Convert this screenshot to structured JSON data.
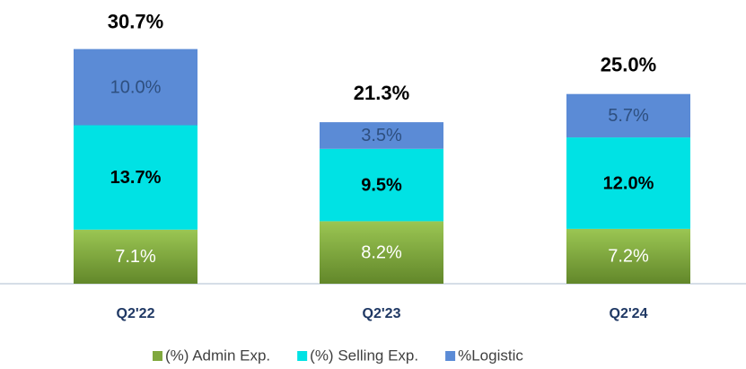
{
  "chart_data": {
    "type": "stacked_bar",
    "categories": [
      "Q2'22",
      "Q2'23",
      "Q2'24"
    ],
    "series": [
      {
        "name": "(%) Admin Exp.",
        "color": "#80a83e",
        "label_color": "#ffffff",
        "values": [
          7.1,
          8.2,
          7.2
        ],
        "value_labels": [
          "7.1%",
          "8.2%",
          "7.2%"
        ]
      },
      {
        "name": "(%) Selling Exp.",
        "color": "#00e2e4",
        "label_color": "#000000",
        "values": [
          13.7,
          9.5,
          12.0
        ],
        "value_labels": [
          "13.7%",
          "9.5%",
          "12.0%"
        ]
      },
      {
        "name": "%Logistic",
        "color": "#5b8bd6",
        "label_color": "#2e4f7f",
        "values": [
          10.0,
          3.5,
          5.7
        ],
        "value_labels": [
          "10.0%",
          "3.5%",
          "5.7%"
        ]
      }
    ],
    "totals": {
      "values": [
        30.7,
        21.3,
        25.0
      ],
      "value_labels": [
        "30.7%",
        "21.3%",
        "25.0%"
      ]
    },
    "ylim": [
      0,
      35
    ],
    "legend": "bottom"
  }
}
